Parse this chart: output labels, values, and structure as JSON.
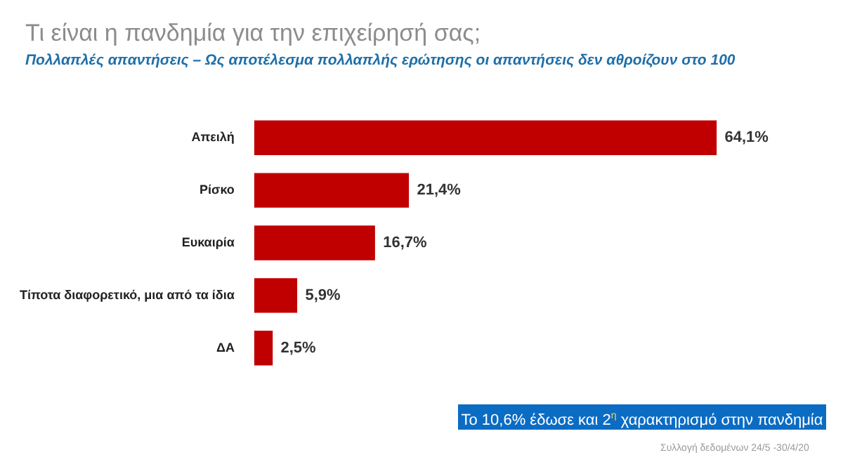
{
  "chart_data": {
    "type": "bar",
    "orientation": "horizontal",
    "title": "Τι είναι η πανδημία για την επιχείρησή σας;",
    "subtitle": "Πολλαπλές απαντήσεις – Ως αποτέλεσμα πολλαπλής ερώτησης οι απαντήσεις δεν αθροίζουν στο 100",
    "categories": [
      "Απειλή",
      "Ρίσκο",
      "Ευκαιρία",
      "Τίποτα διαφορετικό, μια από τα ίδια",
      "ΔΑ"
    ],
    "values": [
      64.1,
      21.4,
      16.7,
      5.9,
      2.5
    ],
    "value_labels": [
      "64,1%",
      "21,4%",
      "16,7%",
      "5,9%",
      "2,5%"
    ],
    "color": "#c00000",
    "tick_labels": "y",
    "legend": false,
    "annotations": [
      "Το 10,6% έδωσε και 2$^{η}$ χαρακτηρισμό στην πανδημία",
      "Συλλογή δεδομένων 24/5 -30/4/20"
    ]
  }
}
